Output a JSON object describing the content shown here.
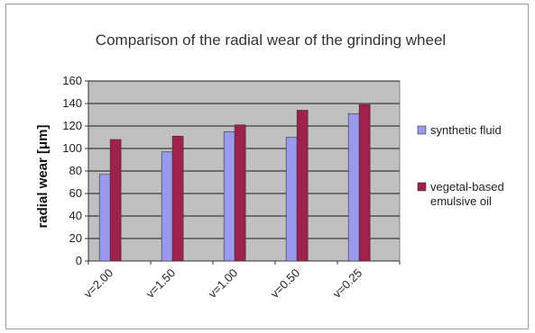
{
  "chart_data": {
    "type": "bar",
    "title": "Comparison of the radial wear of the grinding wheel",
    "xlabel": "",
    "ylabel": "radial wear  [μm]",
    "categories": [
      "v=2.00",
      "v=1.50",
      "v=1.00",
      "v=0.50",
      "v=0.25"
    ],
    "series": [
      {
        "name": "synthetic fluid",
        "values": [
          77,
          97,
          115,
          110,
          131
        ],
        "color": "#9999ee"
      },
      {
        "name": "vegetal-based emulsive oil",
        "values": [
          108,
          111,
          121,
          134,
          139
        ],
        "color": "#a0204e"
      }
    ],
    "ylim": [
      0,
      160
    ],
    "yticks": [
      0,
      20,
      40,
      60,
      80,
      100,
      120,
      140,
      160
    ],
    "grid": true,
    "plot_background": "#c0c0c0",
    "legend_position": "right"
  }
}
